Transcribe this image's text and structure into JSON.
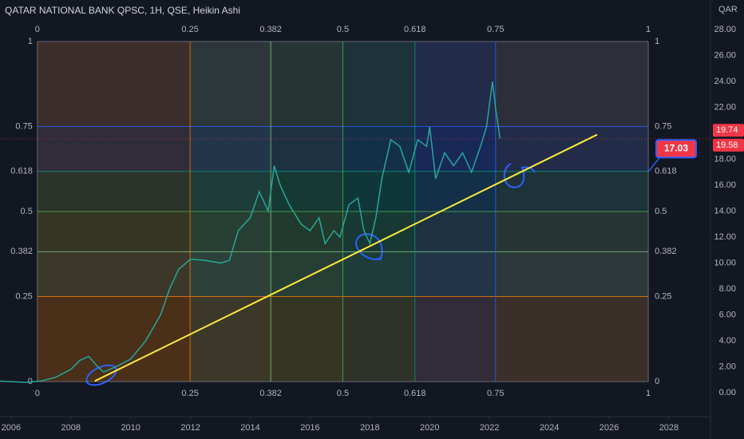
{
  "chart_data": {
    "type": "line",
    "title": "QATAR NATIONAL BANK QPSC, 1H, QSE, Heikin Ashi",
    "y_axis_label": "QAR",
    "xlim": [
      2005.63,
      2029.39
    ],
    "ylim": [
      -1.72,
      30.28
    ],
    "xticks": [
      2006,
      2008,
      2010,
      2012,
      2014,
      2016,
      2018,
      2020,
      2022,
      2024,
      2026,
      2028
    ],
    "yticks": [
      {
        "value": 0,
        "label": "0.00"
      },
      {
        "value": 2,
        "label": "2.00"
      },
      {
        "value": 4,
        "label": "4.00"
      },
      {
        "value": 6,
        "label": "6.00"
      },
      {
        "value": 8,
        "label": "8.00"
      },
      {
        "value": 10,
        "label": "10.00"
      },
      {
        "value": 12,
        "label": "12.00"
      },
      {
        "value": 14,
        "label": "14.00"
      },
      {
        "value": 16,
        "label": "16.00"
      },
      {
        "value": 18,
        "label": "18.00"
      },
      {
        "value": 20,
        "label": "20.00"
      },
      {
        "value": 22,
        "label": "22.00"
      },
      {
        "value": 24,
        "label": "24.00"
      },
      {
        "value": 26,
        "label": "26.00"
      },
      {
        "value": 28,
        "label": "28.00"
      }
    ],
    "series": [
      {
        "color": "#26a69a",
        "x": [
          2005.6,
          2006.5,
          2007.0,
          2007.5,
          2008.0,
          2008.3,
          2008.6,
          2008.9,
          2009.1,
          2009.5,
          2010.0,
          2010.5,
          2011.0,
          2011.3,
          2011.6,
          2012.0,
          2012.5,
          2013.0,
          2013.3,
          2013.6,
          2014.0,
          2014.3,
          2014.6,
          2014.8,
          2015.0,
          2015.3,
          2015.7,
          2016.0,
          2016.3,
          2016.5,
          2016.8,
          2017.0,
          2017.3,
          2017.6,
          2017.8,
          2018.0,
          2018.2,
          2018.4,
          2018.7,
          2019.0,
          2019.3,
          2019.6,
          2019.9,
          2020.0,
          2020.2,
          2020.5,
          2020.8,
          2021.1,
          2021.4,
          2021.7,
          2021.9,
          2022.1,
          2022.2,
          2022.35
        ],
        "values": [
          0.9,
          0.8,
          0.9,
          1.2,
          1.8,
          2.5,
          2.8,
          2.0,
          1.6,
          2.0,
          2.6,
          4.0,
          6.0,
          8.0,
          9.5,
          10.3,
          10.2,
          10.0,
          10.2,
          12.5,
          13.5,
          15.5,
          14.0,
          17.5,
          16.0,
          14.5,
          13.0,
          12.5,
          13.5,
          11.5,
          12.5,
          12.0,
          14.5,
          15.0,
          12.5,
          11.5,
          13.5,
          16.5,
          19.5,
          19.0,
          17.0,
          19.5,
          19.0,
          20.5,
          16.5,
          18.5,
          17.5,
          18.5,
          17.0,
          19.0,
          20.5,
          24.0,
          22.0,
          19.6
        ]
      }
    ],
    "fib_price_range": [
      0.86,
      27.08
    ],
    "fib_time_range": [
      2006.88,
      2027.31
    ],
    "fib_price_levels": [
      {
        "value": 0,
        "color": "#787b86"
      },
      {
        "value": 0.25,
        "color": "#f57c00"
      },
      {
        "value": 0.382,
        "color": "#81c784"
      },
      {
        "value": 0.5,
        "color": "#4caf50"
      },
      {
        "value": 0.618,
        "color": "#089981"
      },
      {
        "value": 0.75,
        "color": "#2962ff"
      },
      {
        "value": 1,
        "color": "#787b86"
      }
    ],
    "fib_time_levels": [
      {
        "value": 0,
        "color": "#787b86"
      },
      {
        "value": 0.25,
        "color": "#f57c00"
      },
      {
        "value": 0.382,
        "color": "#81c784"
      },
      {
        "value": 0.5,
        "color": "#4caf50"
      },
      {
        "value": 0.618,
        "color": "#089981"
      },
      {
        "value": 0.75,
        "color": "#2962ff"
      },
      {
        "value": 1,
        "color": "#787b86"
      }
    ],
    "trendline": {
      "color": "#ffeb3b",
      "x": [
        2008.8,
        2025.6
      ],
      "y": [
        0.9,
        19.9
      ]
    },
    "price_labels": [
      {
        "value": 19.74,
        "label": "19.74",
        "color": "#f23645"
      },
      {
        "value": 19.58,
        "label": "19.58",
        "color": "#f23645"
      }
    ],
    "annotation": {
      "value": 17.03,
      "label": "17.03",
      "color": "#f23645"
    }
  }
}
